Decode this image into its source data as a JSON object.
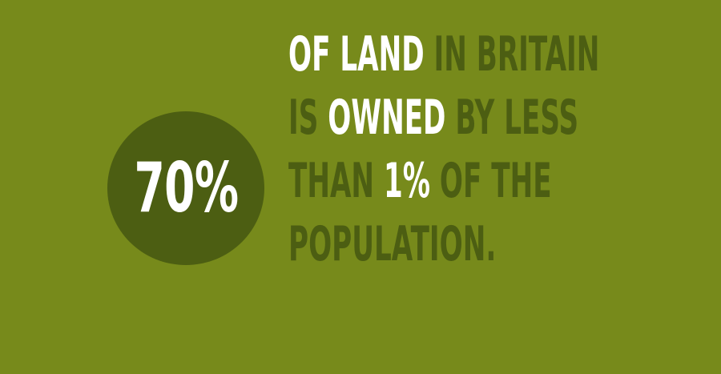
{
  "colors": {
    "background": "#778a1b",
    "circle": "#4c5e12",
    "highlight": "#ffffff",
    "muted": "#4c5e12"
  },
  "stat": {
    "value": "70%"
  },
  "statement": {
    "lines": [
      {
        "segments": [
          {
            "text": "OF LAND",
            "emphasis": true
          },
          {
            "text": " IN BRITAIN",
            "emphasis": false
          }
        ]
      },
      {
        "segments": [
          {
            "text": "IS ",
            "emphasis": false
          },
          {
            "text": "OWNED",
            "emphasis": true
          },
          {
            "text": " BY LESS",
            "emphasis": false
          }
        ]
      },
      {
        "segments": [
          {
            "text": "THAN ",
            "emphasis": false
          },
          {
            "text": "1%",
            "emphasis": true
          },
          {
            "text": " OF THE",
            "emphasis": false
          }
        ]
      },
      {
        "segments": [
          {
            "text": "POPULATION.",
            "emphasis": false
          }
        ]
      }
    ]
  }
}
